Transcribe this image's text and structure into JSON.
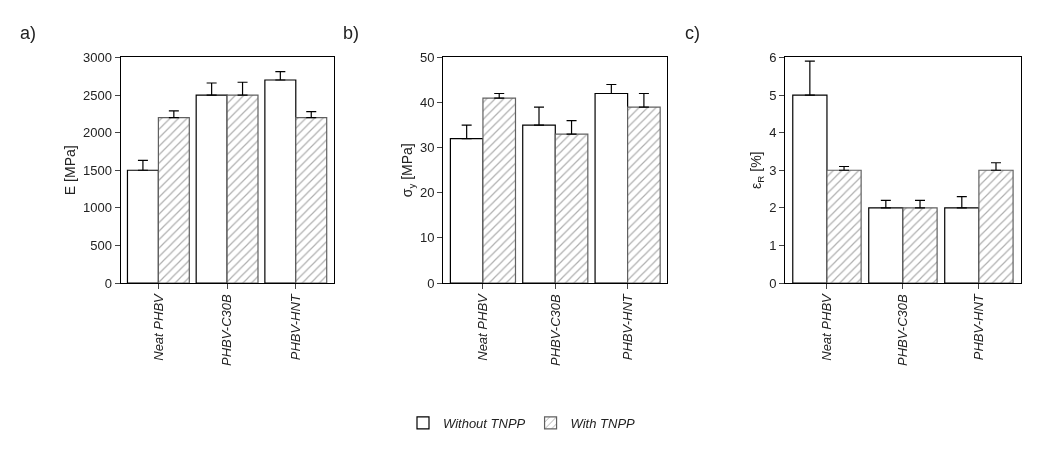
{
  "chart_data": [
    {
      "type": "bar",
      "title": "a)",
      "ylabel": "E [MPa]",
      "categories": [
        "Neat PHBV",
        "PHBV-C30B",
        "PHBV-HNT"
      ],
      "ylim": [
        0,
        3000
      ],
      "yticks": [
        0,
        500,
        1000,
        1500,
        2000,
        2500,
        3000
      ],
      "legend": "bottom",
      "series": [
        {
          "name": "Without TNPP",
          "color": "#ffffff",
          "values": [
            1500,
            2500,
            2700
          ],
          "errors": [
            [
              1500,
              1630
            ],
            [
              2500,
              2660
            ],
            [
              2700,
              2810
            ]
          ]
        },
        {
          "name": "With TNPP",
          "color": "#606060",
          "values": [
            2200,
            2500,
            2200
          ],
          "errors": [
            [
              2200,
              2290
            ],
            [
              2500,
              2670
            ],
            [
              2200,
              2280
            ]
          ]
        }
      ]
    },
    {
      "type": "bar",
      "title": "b)",
      "ylabel": "σ$_{y}$ [MPa]",
      "categories": [
        "Neat PHBV",
        "PHBV-C30B",
        "PHBV-HNT"
      ],
      "ylim": [
        0,
        50
      ],
      "yticks": [
        0,
        10,
        20,
        30,
        40,
        50
      ],
      "series": [
        {
          "color": "#ffffff",
          "values": [
            32,
            35,
            42
          ],
          "errors": [
            [
              32,
              35
            ],
            [
              35,
              39
            ],
            [
              42,
              44
            ]
          ]
        },
        {
          "color": "#606060",
          "values": [
            41,
            33,
            39
          ],
          "errors": [
            [
              41,
              42
            ],
            [
              33,
              36
            ],
            [
              39,
              42
            ]
          ]
        }
      ]
    },
    {
      "type": "bar",
      "title": "c)",
      "ylabel": "ε$_{R}$ [%]",
      "categories": [
        "Neat PHBV",
        "PHBV-C30B",
        "PHBV-HNT"
      ],
      "ylim": [
        0,
        6
      ],
      "yticks": [
        0,
        1,
        2,
        3,
        4,
        5,
        6
      ],
      "series": [
        {
          "color": "#ffffff",
          "values": [
            5,
            2,
            2
          ],
          "errors": [
            [
              5,
              5.9
            ],
            [
              2,
              2.2
            ],
            [
              2,
              2.3
            ]
          ]
        },
        {
          "color": "#606060",
          "values": [
            3,
            2,
            3
          ],
          "errors": [
            [
              3,
              3.1
            ],
            [
              2,
              2.2
            ],
            [
              3,
              3.2
            ]
          ]
        }
      ]
    }
  ]
}
